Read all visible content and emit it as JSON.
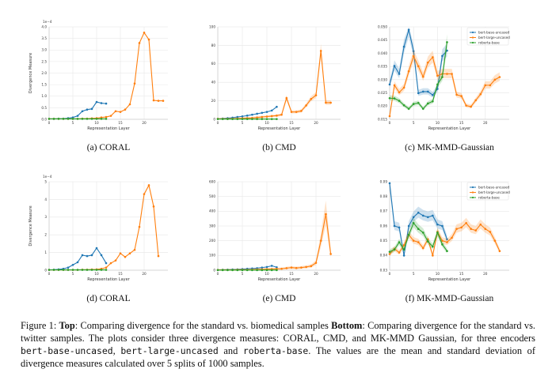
{
  "colors": {
    "bert-base-uncased": "#1f77b4",
    "bert-large-uncased": "#ff7f0e",
    "roberta-base": "#2ca02c"
  },
  "chart_data": [
    {
      "type": "line",
      "id": "a",
      "caption": "(a) CORAL",
      "xlabel": "Representation Layer",
      "ylabel": "Divergence Measure",
      "offset_text": "1e−4",
      "xlim": [
        0,
        25
      ],
      "ylim": [
        0,
        4.0
      ],
      "xticks": [
        0,
        5,
        10,
        15,
        20
      ],
      "yticks": [
        0.0,
        0.5,
        1.0,
        1.5,
        2.0,
        2.5,
        3.0,
        3.5,
        4.0
      ],
      "ytick_labels": [
        "0.0",
        "0.5",
        "1.0",
        "1.5",
        "2.0",
        "2.5",
        "3.0",
        "3.5",
        "4.0"
      ],
      "grid": true,
      "legend": null,
      "series": [
        {
          "model": "bert-base-uncased",
          "x": [
            0,
            1,
            2,
            3,
            4,
            5,
            6,
            7,
            8,
            9,
            10,
            11,
            12
          ],
          "y": [
            0.02,
            0.02,
            0.03,
            0.03,
            0.05,
            0.08,
            0.15,
            0.35,
            0.42,
            0.45,
            0.75,
            0.7,
            0.68
          ],
          "band": 0
        },
        {
          "model": "bert-large-uncased",
          "x": [
            0,
            1,
            2,
            3,
            4,
            5,
            6,
            7,
            8,
            9,
            10,
            11,
            12,
            13,
            14,
            15,
            16,
            17,
            18,
            19,
            20,
            21,
            22,
            23,
            24
          ],
          "y": [
            0.02,
            0.02,
            0.02,
            0.02,
            0.02,
            0.02,
            0.02,
            0.03,
            0.03,
            0.04,
            0.05,
            0.08,
            0.1,
            0.15,
            0.35,
            0.32,
            0.42,
            0.65,
            1.55,
            3.3,
            3.75,
            3.45,
            0.82,
            0.8,
            0.8
          ],
          "band": 0,
          "n": 24
        },
        {
          "model": "roberta-base",
          "x": [
            0,
            1,
            2,
            3,
            4,
            5,
            6,
            7,
            8,
            9,
            10,
            11,
            12
          ],
          "y": [
            0.02,
            0.02,
            0.02,
            0.02,
            0.02,
            0.02,
            0.02,
            0.02,
            0.02,
            0.02,
            0.02,
            0.02,
            0.02
          ],
          "band": 0
        }
      ]
    },
    {
      "type": "line",
      "id": "b",
      "caption": "(b) CMD",
      "xlabel": "Representation Layer",
      "ylabel": "",
      "offset_text": "",
      "xlim": [
        0,
        25
      ],
      "ylim": [
        0,
        100
      ],
      "xticks": [
        0,
        5,
        10,
        15,
        20
      ],
      "yticks": [
        0,
        20,
        40,
        60,
        80,
        100
      ],
      "ytick_labels": [
        "0",
        "20",
        "40",
        "60",
        "80",
        "100"
      ],
      "grid": true,
      "legend": null,
      "series": [
        {
          "model": "bert-base-uncased",
          "x": [
            0,
            1,
            2,
            3,
            4,
            5,
            6,
            7,
            8,
            9,
            10,
            11,
            12
          ],
          "y": [
            0.5,
            0.8,
            1.2,
            1.8,
            2.5,
            3.2,
            4.0,
            5.0,
            6.0,
            7.0,
            8.0,
            9.5,
            13.5
          ],
          "band": 0
        },
        {
          "model": "bert-large-uncased",
          "x": [
            0,
            1,
            2,
            3,
            4,
            5,
            6,
            7,
            8,
            9,
            10,
            11,
            12,
            13,
            14,
            15,
            16,
            17,
            18,
            19,
            20,
            21,
            22,
            23
          ],
          "y": [
            0.5,
            0.5,
            0.5,
            0.6,
            0.8,
            1.0,
            1.2,
            1.5,
            2.0,
            2.5,
            3.0,
            3.5,
            4.0,
            5.0,
            23,
            8,
            8,
            9,
            15,
            22,
            26,
            74,
            18,
            18
          ],
          "band": 1
        },
        {
          "model": "roberta-base",
          "x": [
            0,
            1,
            2,
            3,
            4,
            5,
            6,
            7,
            8,
            9,
            10,
            11,
            12
          ],
          "y": [
            0.3,
            0.3,
            0.3,
            0.3,
            0.3,
            0.3,
            0.3,
            0.3,
            0.3,
            0.3,
            0.3,
            0.3,
            0.3
          ],
          "band": 0
        }
      ]
    },
    {
      "type": "line",
      "id": "c",
      "caption": "(c) MK-MMD-Gaussian",
      "xlabel": "Representation Layer",
      "ylabel": "",
      "offset_text": "",
      "xlim": [
        0,
        25
      ],
      "ylim": [
        0.015,
        0.05
      ],
      "xticks": [
        0,
        5,
        10,
        15,
        20
      ],
      "yticks": [
        0.015,
        0.02,
        0.025,
        0.03,
        0.035,
        0.04,
        0.045,
        0.05
      ],
      "ytick_labels": [
        "0.015",
        "0.020",
        "0.025",
        "0.030",
        "0.035",
        "0.040",
        "0.045",
        "0.050"
      ],
      "grid": true,
      "legend": "top-right",
      "series": [
        {
          "model": "bert-base-uncased",
          "x": [
            0,
            1,
            2,
            3,
            4,
            5,
            6,
            7,
            8,
            9,
            10,
            11,
            12
          ],
          "y": [
            0.0282,
            0.0352,
            0.0322,
            0.0425,
            0.0489,
            0.0408,
            0.0249,
            0.0255,
            0.0255,
            0.0242,
            0.0265,
            0.039,
            0.041
          ],
          "band": 1
        },
        {
          "model": "bert-large-uncased",
          "x": [
            0,
            1,
            2,
            3,
            4,
            5,
            6,
            7,
            8,
            9,
            10,
            11,
            12,
            13,
            14,
            15,
            16,
            17,
            18,
            19,
            20,
            21,
            22,
            23
          ],
          "y": [
            0.0162,
            0.0279,
            0.0252,
            0.027,
            0.0332,
            0.0389,
            0.0351,
            0.0311,
            0.0365,
            0.0385,
            0.0315,
            0.0322,
            0.0322,
            0.0322,
            0.0243,
            0.0238,
            0.0202,
            0.0198,
            0.0222,
            0.0245,
            0.0279,
            0.0279,
            0.03,
            0.031
          ],
          "band": 1
        },
        {
          "model": "roberta-base",
          "x": [
            0,
            1,
            2,
            3,
            4,
            5,
            6,
            7,
            8,
            9,
            10,
            11,
            12
          ],
          "y": [
            0.023,
            0.0229,
            0.022,
            0.0203,
            0.019,
            0.0208,
            0.0212,
            0.019,
            0.021,
            0.0218,
            0.0282,
            0.031,
            0.0442
          ],
          "band": 1
        }
      ]
    },
    {
      "type": "line",
      "id": "d",
      "caption": "(d) CORAL",
      "xlabel": "Representation Layer",
      "ylabel": "Divergence Measure",
      "offset_text": "1e−4",
      "xlim": [
        0,
        25
      ],
      "ylim": [
        0,
        5
      ],
      "xticks": [
        0,
        5,
        10,
        15,
        20
      ],
      "yticks": [
        0,
        1,
        2,
        3,
        4,
        5
      ],
      "ytick_labels": [
        "0",
        "1",
        "2",
        "3",
        "4",
        "5"
      ],
      "grid": true,
      "legend": null,
      "series": [
        {
          "model": "bert-base-uncased",
          "x": [
            0,
            1,
            2,
            3,
            4,
            5,
            6,
            7,
            8,
            9,
            10,
            11,
            12
          ],
          "y": [
            0.02,
            0.03,
            0.05,
            0.08,
            0.15,
            0.3,
            0.45,
            0.85,
            0.8,
            0.85,
            1.25,
            0.85,
            0.4
          ],
          "band": 0
        },
        {
          "model": "bert-large-uncased",
          "x": [
            0,
            1,
            2,
            3,
            4,
            5,
            6,
            7,
            8,
            9,
            10,
            11,
            12,
            13,
            14,
            15,
            16,
            17,
            18,
            19,
            20,
            21,
            22,
            23
          ],
          "y": [
            0.02,
            0.02,
            0.02,
            0.02,
            0.02,
            0.02,
            0.02,
            0.03,
            0.03,
            0.04,
            0.05,
            0.08,
            0.15,
            0.4,
            0.55,
            0.95,
            0.75,
            0.95,
            1.15,
            2.45,
            4.3,
            4.8,
            3.6,
            0.8
          ],
          "band": 0
        },
        {
          "model": "roberta-base",
          "x": [
            0,
            1,
            2,
            3,
            4,
            5,
            6,
            7,
            8,
            9,
            10,
            11,
            12
          ],
          "y": [
            0.02,
            0.02,
            0.02,
            0.02,
            0.02,
            0.02,
            0.02,
            0.02,
            0.02,
            0.02,
            0.02,
            0.02,
            0.02
          ],
          "band": 0
        }
      ]
    },
    {
      "type": "line",
      "id": "e",
      "caption": "(e) CMD",
      "xlabel": "Representation Layer",
      "ylabel": "",
      "offset_text": "",
      "xlim": [
        0,
        25
      ],
      "ylim": [
        0,
        600
      ],
      "xticks": [
        0,
        5,
        10,
        15,
        20
      ],
      "yticks": [
        0,
        100,
        200,
        300,
        400,
        500,
        600
      ],
      "ytick_labels": [
        "0",
        "100",
        "200",
        "300",
        "400",
        "500",
        "600"
      ],
      "grid": true,
      "legend": null,
      "series": [
        {
          "model": "bert-base-uncased",
          "x": [
            0,
            1,
            2,
            3,
            4,
            5,
            6,
            7,
            8,
            9,
            10,
            11,
            12
          ],
          "y": [
            2,
            3,
            4,
            5,
            6,
            8,
            10,
            12,
            14,
            18,
            22,
            30,
            20
          ],
          "band": 0
        },
        {
          "model": "bert-large-uncased",
          "x": [
            0,
            1,
            2,
            3,
            4,
            5,
            6,
            7,
            8,
            9,
            10,
            11,
            12,
            13,
            14,
            15,
            16,
            17,
            18,
            19,
            20,
            21,
            22,
            23
          ],
          "y": [
            2,
            2,
            2,
            2,
            3,
            3,
            3,
            4,
            5,
            6,
            7,
            8,
            9,
            10,
            14,
            18,
            15,
            18,
            22,
            28,
            50,
            200,
            380,
            110
          ],
          "band": 2
        },
        {
          "model": "roberta-base",
          "x": [
            0,
            1,
            2,
            3,
            4,
            5,
            6,
            7,
            8,
            9,
            10,
            11,
            12
          ],
          "y": [
            1,
            1,
            1,
            1,
            1,
            1,
            1,
            1,
            1,
            1,
            1,
            1,
            1
          ],
          "band": 0
        }
      ]
    },
    {
      "type": "line",
      "id": "f",
      "caption": "(f) MK-MMD-Gaussian",
      "xlabel": "Representation Layer",
      "ylabel": "",
      "offset_text": "",
      "xlim": [
        0,
        25
      ],
      "ylim": [
        0.03,
        0.09
      ],
      "xticks": [
        0,
        5,
        10,
        15,
        20
      ],
      "yticks": [
        0.03,
        0.04,
        0.05,
        0.06,
        0.07,
        0.08,
        0.09
      ],
      "ytick_labels": [
        "0.03",
        "0.04",
        "0.05",
        "0.06",
        "0.07",
        "0.08",
        "0.09"
      ],
      "grid": true,
      "legend": "top-right",
      "series": [
        {
          "model": "bert-base-uncased",
          "x": [
            0,
            1,
            2,
            3,
            4,
            5,
            6,
            7,
            8,
            9,
            10,
            11,
            12
          ],
          "y": [
            0.089,
            0.06,
            0.059,
            0.04,
            0.06,
            0.066,
            0.069,
            0.067,
            0.066,
            0.067,
            0.061,
            0.06,
            0.051
          ],
          "band": 1
        },
        {
          "model": "bert-large-uncased",
          "x": [
            0,
            1,
            2,
            3,
            4,
            5,
            6,
            7,
            8,
            9,
            10,
            11,
            12,
            13,
            14,
            15,
            16,
            17,
            18,
            19,
            20,
            21,
            22,
            23
          ],
          "y": [
            0.041,
            0.0445,
            0.042,
            0.047,
            0.054,
            0.05,
            0.049,
            0.045,
            0.051,
            0.04,
            0.056,
            0.05,
            0.049,
            0.052,
            0.058,
            0.059,
            0.062,
            0.058,
            0.057,
            0.061,
            0.058,
            0.056,
            0.05,
            0.043
          ],
          "band": 1
        },
        {
          "model": "roberta-base",
          "x": [
            0,
            1,
            2,
            3,
            4,
            5,
            6,
            7,
            8,
            9,
            10,
            11,
            12
          ],
          "y": [
            0.0425,
            0.044,
            0.049,
            0.044,
            0.054,
            0.062,
            0.058,
            0.0555,
            0.0495,
            0.046,
            0.0555,
            0.0475,
            0.043
          ],
          "band": 1
        }
      ]
    }
  ],
  "legend_labels": [
    "bert-base-uncased",
    "bert-large-uncased",
    "roberta-base"
  ],
  "caption": {
    "figure_label": "Figure 1: ",
    "top_bold": "Top",
    "top_text": ": Comparing divergence for the standard vs. biomedical samples ",
    "bottom_bold": "Bottom",
    "bottom_text": ": Comparing divergence for the standard vs. twitter samples. The plots consider three divergence measures: CORAL, CMD, and MK-MMD Gaussian, for three encoders ",
    "enc1": "bert-base-uncased",
    "sep1": ", ",
    "enc2": "bert-large-uncased",
    "sep2": " and ",
    "enc3": "roberta-base",
    "tail": ". The values are the mean and standard deviation of divergence measures calculated over 5 splits of 1000 samples."
  }
}
